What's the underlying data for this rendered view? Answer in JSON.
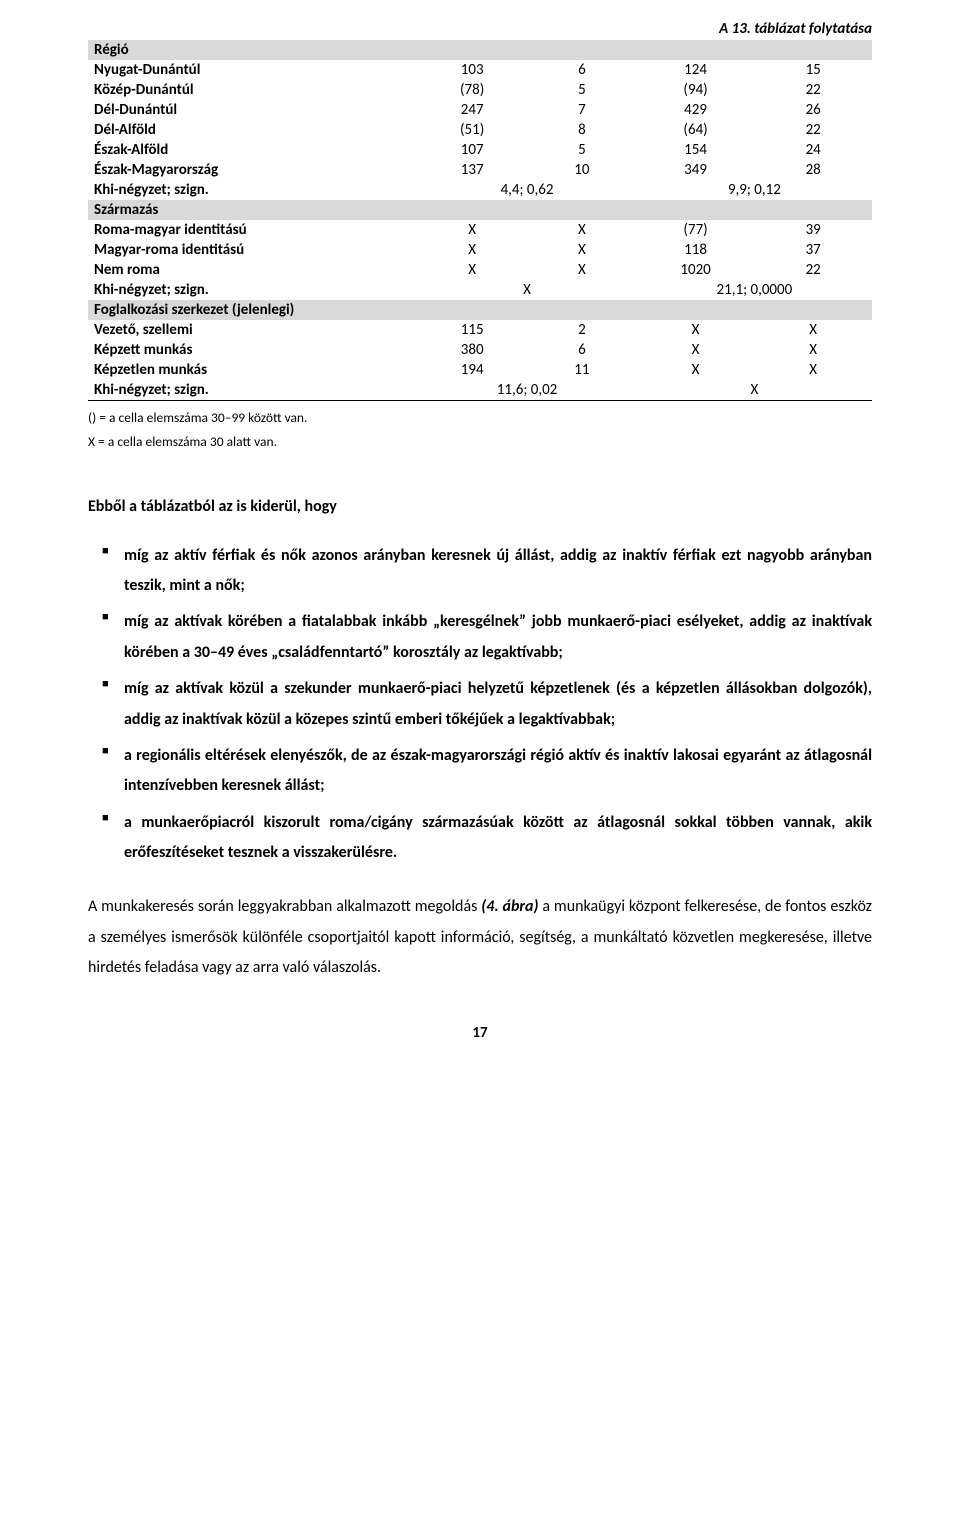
{
  "continuation_title": "A 13. táblázat folytatása",
  "table": {
    "sections": [
      {
        "header": "Régió",
        "rows": [
          {
            "label": "Nyugat-Dunántúl",
            "c2": "103",
            "c3": "6",
            "c4": "124",
            "c5": "15"
          },
          {
            "label": "Közép-Dunántúl",
            "c2": "(78)",
            "c3": "5",
            "c4": "(94)",
            "c5": "22"
          },
          {
            "label": "Dél-Dunántúl",
            "c2": "247",
            "c3": "7",
            "c4": "429",
            "c5": "26"
          },
          {
            "label": "Dél-Alföld",
            "c2": "(51)",
            "c3": "8",
            "c4": "(64)",
            "c5": "22"
          },
          {
            "label": "Észak-Alföld",
            "c2": "107",
            "c3": "5",
            "c4": "154",
            "c5": "24"
          },
          {
            "label": "Észak-Magyarország",
            "c2": "137",
            "c3": "10",
            "c4": "349",
            "c5": "28"
          }
        ],
        "khi": {
          "label": "Khi-négyzet; szign.",
          "left": "4,4; 0,62",
          "right": "9,9; 0,12"
        }
      },
      {
        "header": "Származás",
        "rows": [
          {
            "label": "Roma-magyar identitású",
            "c2": "X",
            "c3": "X",
            "c4": "(77)",
            "c5": "39"
          },
          {
            "label": "Magyar-roma identitású",
            "c2": "X",
            "c3": "X",
            "c4": "118",
            "c5": "37"
          },
          {
            "label": "Nem roma",
            "c2": "X",
            "c3": "X",
            "c4": "1020",
            "c5": "22"
          }
        ],
        "khi": {
          "label": "Khi-négyzet; szign.",
          "left": "X",
          "right": "21,1; 0,0000"
        }
      },
      {
        "header": "Foglalkozási szerkezet (jelenlegi)",
        "rows": [
          {
            "label": "Vezető, szellemi",
            "c2": "115",
            "c3": "2",
            "c4": "X",
            "c5": "X"
          },
          {
            "label": "Képzett munkás",
            "c2": "380",
            "c3": "6",
            "c4": "X",
            "c5": "X"
          },
          {
            "label": "Képzetlen munkás",
            "c2": "194",
            "c3": "11",
            "c4": "X",
            "c5": "X"
          }
        ],
        "khi": {
          "label": "Khi-négyzet; szign.",
          "left": "11,6; 0,02",
          "right": "X"
        },
        "last": true
      }
    ]
  },
  "notes": [
    "() = a cella elemszáma 30–99 között van.",
    "X = a cella elemszáma 30 alatt van."
  ],
  "lead": "Ebből a táblázatból az is kiderül, hogy",
  "bullets": [
    "míg az aktív férfiak és nők azonos arányban keresnek új állást, addig az inaktív férfiak ezt nagyobb arányban teszik, mint a nők;",
    "míg az aktívak körében a fiatalabbak inkább „keresgélnek” jobb munkaerő-piaci esélyeket, addig az inaktívak körében a 30–49 éves „családfenntartó” korosztály az legaktívabb;",
    "míg az aktívak közül a szekunder munkaerő-piaci helyzetű képzetlenek (és a képzetlen állásokban dolgozók), addig az inaktívak közül a közepes szintű emberi tőkéjűek a legaktívabbak;",
    "a regionális eltérések elenyészők, de az észak-magyarországi régió aktív és inaktív lakosai egyaránt az átlagosnál intenzívebben keresnek állást;",
    "a munkaerőpiacról kiszorult roma/cigány származásúak között az átlagosnál sokkal többen vannak, akik erőfeszítéseket tesznek a visszakerülésre."
  ],
  "paragraph": {
    "pre": "A munkakeresés során leggyakrabban alkalmazott megoldás ",
    "ref": "(4. ábra)",
    "post": " a munkaügyi központ felkeresése, de fontos eszköz a személyes ismerősök különféle csoportjaitól kapott információ, segítség, a munkáltató közvetlen megkeresése, illetve hirdetés feladása vagy az arra való válaszolás."
  },
  "page_number": "17"
}
